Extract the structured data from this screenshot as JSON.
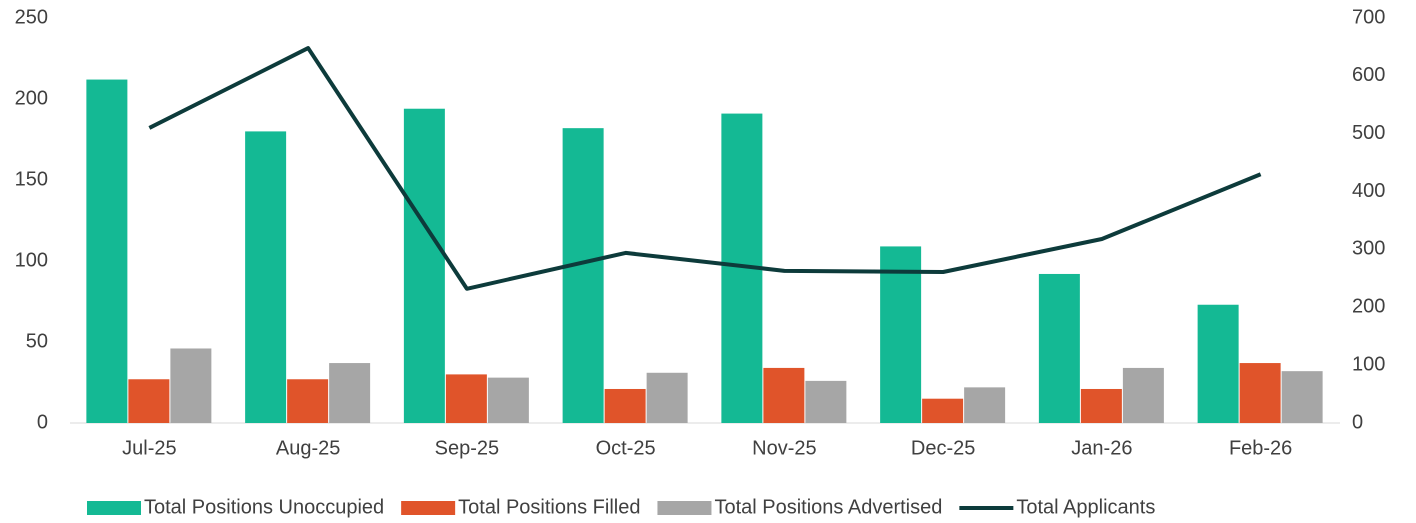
{
  "chart_data": {
    "type": "bar",
    "categories": [
      "Jul-25",
      "Aug-25",
      "Sep-25",
      "Oct-25",
      "Nov-25",
      "Dec-25",
      "Jan-26",
      "Feb-26"
    ],
    "series": [
      {
        "name": "Total Positions Unoccupied",
        "color": "#14b994",
        "values": [
          212,
          180,
          194,
          182,
          191,
          109,
          92,
          73
        ]
      },
      {
        "name": "Total Positions Filled",
        "color": "#e0542a",
        "values": [
          27,
          27,
          30,
          21,
          34,
          15,
          21,
          37
        ]
      },
      {
        "name": "Total Positions Advertised",
        "color": "#a6a6a6",
        "values": [
          46,
          37,
          28,
          31,
          26,
          22,
          34,
          32
        ]
      },
      {
        "name": "Total Applicants",
        "color": "#0d3b3b",
        "type": "line",
        "axis": "y2",
        "values": [
          510,
          648,
          232,
          294,
          263,
          261,
          318,
          430
        ]
      }
    ],
    "ylim": [
      0,
      250
    ],
    "yticks": [
      0,
      50,
      100,
      150,
      200,
      250
    ],
    "y2lim": [
      0,
      700
    ],
    "y2ticks": [
      0,
      100,
      200,
      300,
      400,
      500,
      600,
      700
    ],
    "legend": "bottom"
  }
}
